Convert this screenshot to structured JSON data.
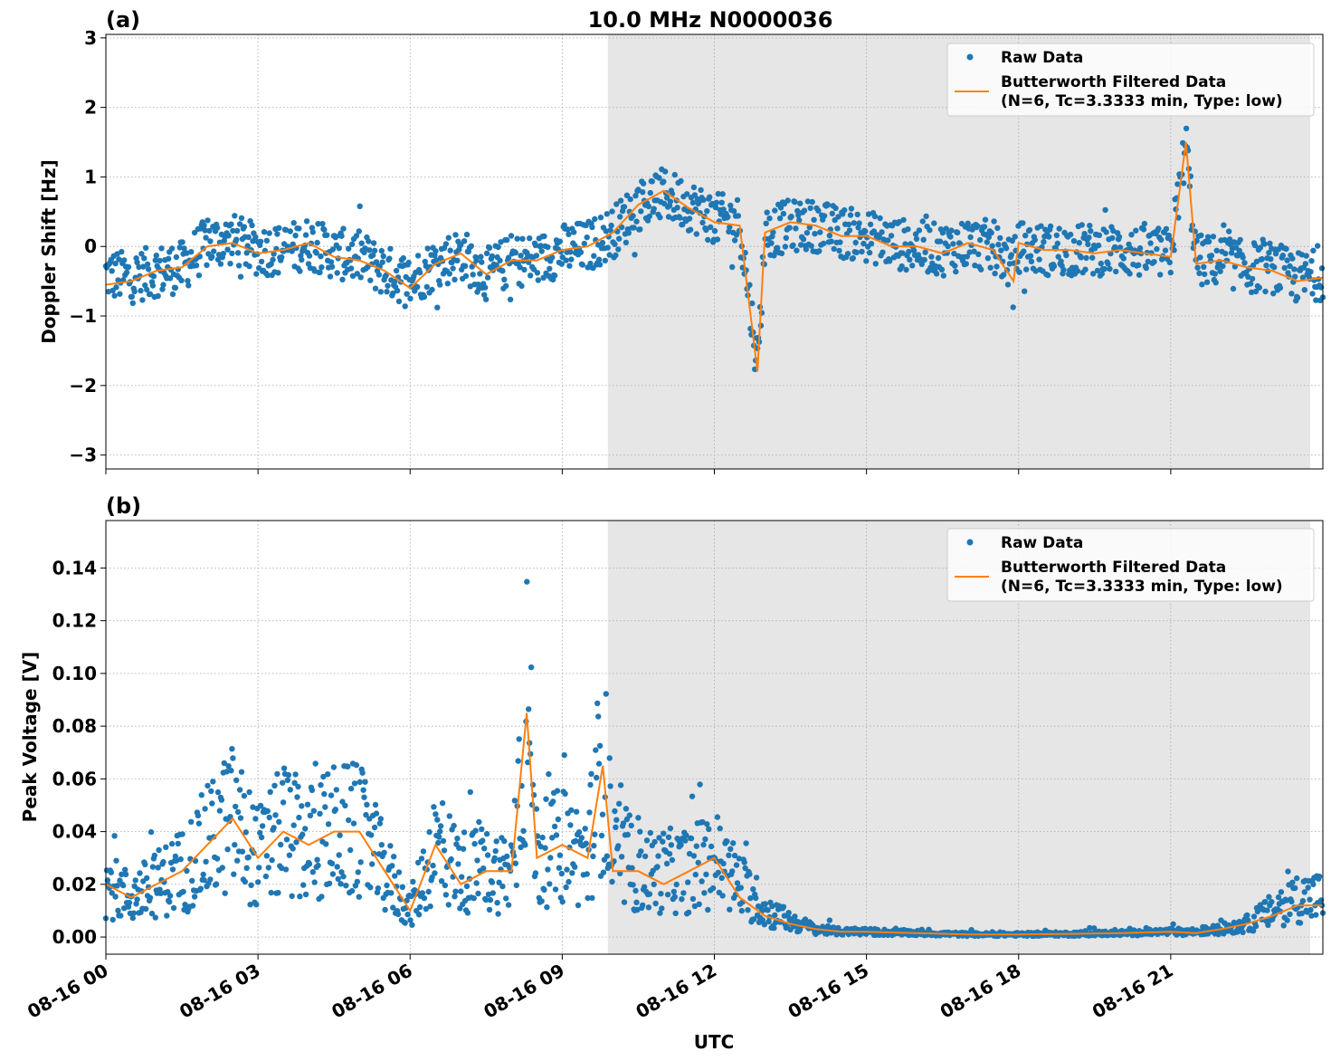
{
  "figure": {
    "title": "10.0 MHz N0000036",
    "xlabel": "UTC",
    "x_ticks": [
      "08-16 00",
      "08-16 03",
      "08-16 06",
      "08-16 09",
      "08-16 12",
      "08-16 15",
      "08-16 18",
      "08-16 21"
    ]
  },
  "colors": {
    "raw": "#1f77b4",
    "filtered": "#ff7f0e",
    "shade": "#e6e6e6",
    "grid": "#b0b0b0"
  },
  "legend": {
    "raw_label": "Raw Data",
    "filtered_label_line1": "Butterworth Filtered Data",
    "filtered_label_line2": "(N=6, Tc=3.3333 min, Type: low)"
  },
  "chart_data": [
    {
      "panel": "(a)",
      "type": "scatter",
      "ylabel": "Doppler Shift [Hz]",
      "xlim": [
        0,
        24
      ],
      "ylim": [
        -3.2,
        3.05
      ],
      "yticks": [
        3,
        2,
        1,
        0,
        -1,
        -2,
        -3
      ],
      "ytick_labels": [
        "3",
        "2",
        "1",
        "0",
        "−1",
        "−2",
        "−3"
      ],
      "shaded_x_range_hours": [
        9.9,
        23.75
      ],
      "series": [
        {
          "name": "Raw Data",
          "x": [
            0,
            0.5,
            1,
            1.5,
            2,
            2.5,
            3,
            3.5,
            4,
            4.5,
            5,
            5.5,
            6,
            6.5,
            7,
            7.5,
            8,
            8.5,
            9,
            9.5,
            10,
            10.5,
            11,
            11.5,
            12,
            12.5,
            12.85,
            13,
            13.5,
            14,
            14.5,
            15,
            15.5,
            16,
            16.5,
            17,
            17.5,
            17.9,
            18,
            18.5,
            19,
            19.5,
            20,
            20.5,
            21,
            21.3,
            21.5,
            22,
            22.5,
            23,
            23.5,
            24
          ],
          "y": [
            -0.4,
            -0.45,
            -0.35,
            -0.3,
            0.05,
            0.1,
            -0.05,
            -0.05,
            0.05,
            -0.1,
            -0.15,
            -0.35,
            -0.5,
            -0.25,
            -0.1,
            -0.4,
            -0.2,
            -0.2,
            -0.05,
            0.0,
            0.2,
            0.6,
            0.75,
            0.6,
            0.4,
            0.35,
            -1.7,
            0.2,
            0.3,
            0.3,
            0.2,
            0.15,
            0.05,
            0.0,
            -0.05,
            0.05,
            0.0,
            -0.3,
            0.0,
            -0.05,
            -0.05,
            -0.05,
            -0.05,
            -0.1,
            -0.1,
            1.5,
            -0.2,
            -0.2,
            -0.3,
            -0.3,
            -0.45,
            -0.4
          ]
        },
        {
          "name": "Butterworth Filtered Data\n(N=6, Tc=3.3333 min, Type: low)",
          "x": [
            0,
            0.5,
            1,
            1.5,
            2,
            2.5,
            3,
            3.5,
            4,
            4.5,
            5,
            5.5,
            6,
            6.5,
            7,
            7.5,
            8,
            8.5,
            9,
            9.5,
            10,
            10.5,
            11,
            11.5,
            12,
            12.5,
            12.85,
            13,
            13.5,
            14,
            14.5,
            15,
            15.5,
            16,
            16.5,
            17,
            17.5,
            17.9,
            18,
            18.5,
            19,
            19.5,
            20,
            20.5,
            21,
            21.3,
            21.5,
            22,
            22.5,
            23,
            23.5,
            24
          ],
          "y": [
            -0.55,
            -0.5,
            -0.35,
            -0.3,
            0.0,
            0.05,
            -0.1,
            -0.05,
            0.05,
            -0.15,
            -0.2,
            -0.35,
            -0.6,
            -0.25,
            -0.1,
            -0.4,
            -0.2,
            -0.2,
            -0.05,
            0.0,
            0.2,
            0.6,
            0.8,
            0.55,
            0.35,
            0.3,
            -1.8,
            0.2,
            0.35,
            0.3,
            0.15,
            0.15,
            0.0,
            0.0,
            -0.1,
            0.05,
            -0.05,
            -0.5,
            0.05,
            -0.05,
            -0.05,
            -0.1,
            -0.05,
            -0.1,
            -0.15,
            1.5,
            -0.25,
            -0.2,
            -0.3,
            -0.35,
            -0.5,
            -0.45
          ]
        }
      ]
    },
    {
      "panel": "(b)",
      "type": "scatter",
      "ylabel": "Peak Voltage [V]",
      "xlim": [
        0,
        24
      ],
      "ylim": [
        -0.0065,
        0.158
      ],
      "yticks": [
        0.0,
        0.02,
        0.04,
        0.06,
        0.08,
        0.1,
        0.12,
        0.14
      ],
      "ytick_labels": [
        "0.00",
        "0.02",
        "0.04",
        "0.06",
        "0.08",
        "0.10",
        "0.12",
        "0.14"
      ],
      "shaded_x_range_hours": [
        9.9,
        23.75
      ],
      "series": [
        {
          "name": "Raw Data",
          "x": [
            0,
            0.5,
            1,
            1.5,
            2,
            2.5,
            3,
            3.5,
            4,
            4.5,
            5,
            5.5,
            6,
            6.5,
            7,
            7.5,
            8,
            8.3,
            8.5,
            9,
            9.5,
            9.8,
            10,
            10.5,
            11,
            11.5,
            12,
            12.5,
            13,
            13.5,
            14,
            14.5,
            15,
            16,
            17,
            18,
            19,
            20,
            21,
            21.5,
            22,
            22.5,
            23,
            23.5,
            24
          ],
          "y": [
            0.02,
            0.015,
            0.02,
            0.025,
            0.035,
            0.045,
            0.03,
            0.04,
            0.035,
            0.04,
            0.04,
            0.025,
            0.01,
            0.035,
            0.025,
            0.025,
            0.025,
            0.09,
            0.03,
            0.035,
            0.03,
            0.07,
            0.03,
            0.025,
            0.025,
            0.025,
            0.03,
            0.02,
            0.01,
            0.006,
            0.003,
            0.002,
            0.002,
            0.0015,
            0.001,
            0.001,
            0.0012,
            0.0015,
            0.002,
            0.002,
            0.003,
            0.005,
            0.01,
            0.015,
            0.015
          ]
        },
        {
          "name": "Butterworth Filtered Data\n(N=6, Tc=3.3333 min, Type: low)",
          "x": [
            0,
            0.5,
            1,
            1.5,
            2,
            2.5,
            3,
            3.5,
            4,
            4.5,
            5,
            5.5,
            6,
            6.5,
            7,
            7.5,
            8,
            8.3,
            8.5,
            9,
            9.5,
            9.8,
            10,
            10.5,
            11,
            11.5,
            12,
            12.5,
            13,
            13.5,
            14,
            14.5,
            15,
            16,
            17,
            18,
            19,
            20,
            21,
            21.5,
            22,
            22.5,
            23,
            23.5,
            24
          ],
          "y": [
            0.02,
            0.015,
            0.02,
            0.025,
            0.035,
            0.045,
            0.03,
            0.04,
            0.035,
            0.04,
            0.04,
            0.025,
            0.01,
            0.035,
            0.02,
            0.025,
            0.025,
            0.085,
            0.03,
            0.035,
            0.03,
            0.065,
            0.025,
            0.025,
            0.02,
            0.025,
            0.03,
            0.015,
            0.008,
            0.005,
            0.003,
            0.002,
            0.002,
            0.0015,
            0.001,
            0.001,
            0.0012,
            0.0015,
            0.002,
            0.0015,
            0.003,
            0.005,
            0.008,
            0.012,
            0.012
          ]
        }
      ]
    }
  ]
}
